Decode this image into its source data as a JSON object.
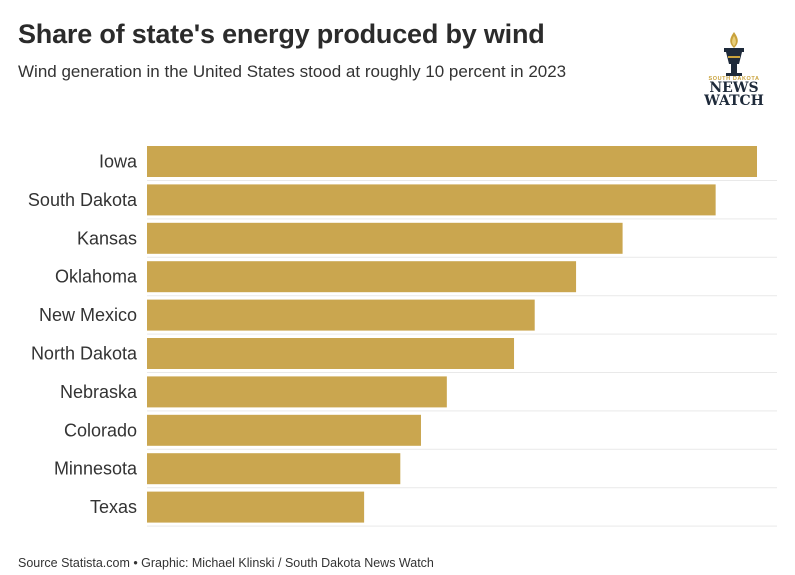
{
  "header": {
    "title": "Share of state's energy produced by wind",
    "subtitle": "Wind generation in the United States stood at roughly 10 percent in 2023"
  },
  "logo": {
    "top_text": "SOUTH DAKOTA",
    "line1": "NEWS",
    "line2": "WATCH",
    "icon": "torch-icon",
    "gold": "#c9a23c",
    "navy": "#1e2a3a"
  },
  "footer": {
    "source": "Source Statista.com • Graphic: Michael Klinski / South Dakota News Watch"
  },
  "chart_data": {
    "type": "bar",
    "orientation": "horizontal",
    "title": "Share of state's energy produced by wind",
    "subtitle": "Wind generation in the United States stood at roughly 10 percent in 2023",
    "categories": [
      "Iowa",
      "South Dakota",
      "Kansas",
      "Oklahoma",
      "New Mexico",
      "North Dakota",
      "Nebraska",
      "Colorado",
      "Minnesota",
      "Texas"
    ],
    "values": [
      59,
      55,
      46,
      41.5,
      37.5,
      35.5,
      29,
      26.5,
      24.5,
      21
    ],
    "xlim": [
      0,
      59
    ],
    "bar_color": "#caa64f",
    "grid": true
  }
}
